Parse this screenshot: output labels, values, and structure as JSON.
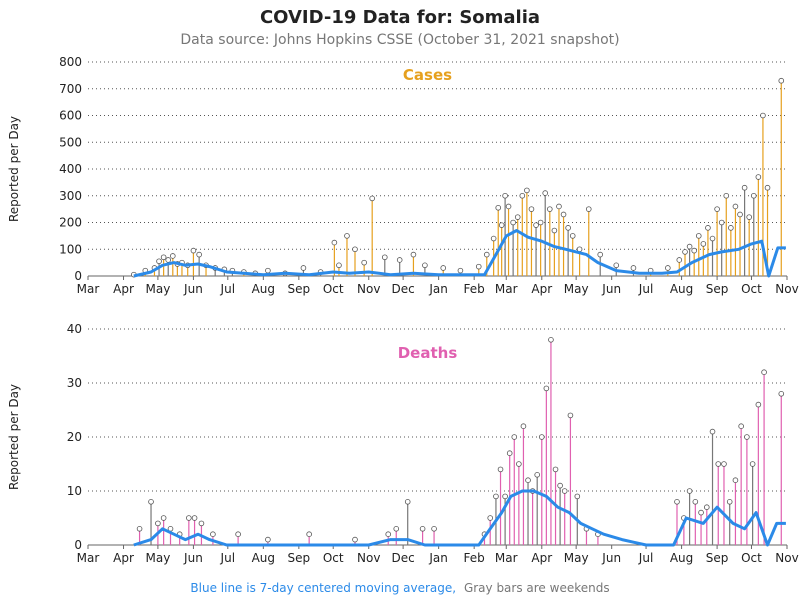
{
  "header": {
    "title": "COVID-19 Data for: Somalia",
    "subtitle": "Data source: Johns Hopkins CSSE (October 31, 2021 snapshot)"
  },
  "footer": {
    "blue_note": "Blue line is 7-day centered moving average,",
    "gray_note": "Gray bars are weekends"
  },
  "colors": {
    "cases": "#e6a01e",
    "deaths": "#e060b0",
    "moving_average": "#2b8ae8",
    "weekend": "#777777"
  },
  "chart_data": [
    {
      "type": "bar",
      "title": "Cases",
      "ylabel": "Reported per Day",
      "ylim": [
        0,
        800
      ],
      "yticks": [
        0,
        100,
        200,
        300,
        400,
        500,
        600,
        700,
        800
      ],
      "x_start": "2020-03-01",
      "x_end": "2021-11-01",
      "xtick_dates": [
        "2020-03-01",
        "2020-04-01",
        "2020-05-01",
        "2020-06-01",
        "2020-07-01",
        "2020-08-01",
        "2020-09-01",
        "2020-10-01",
        "2020-11-01",
        "2020-12-01",
        "2021-01-01",
        "2021-02-01",
        "2021-03-01",
        "2021-04-01",
        "2021-05-01",
        "2021-06-01",
        "2021-07-01",
        "2021-08-01",
        "2021-09-01",
        "2021-10-01",
        "2021-11-01"
      ],
      "xtick_labels": [
        "Mar",
        "Apr",
        "May",
        "Jun",
        "Jul",
        "Aug",
        "Sep",
        "Oct",
        "Nov",
        "Dec",
        "Jan",
        "Feb",
        "Mar",
        "Apr",
        "May",
        "Jun",
        "Jul",
        "Aug",
        "Sep",
        "Oct",
        "Nov"
      ],
      "grid": true,
      "series": [
        {
          "name": "Reported per Day",
          "style": "bars",
          "x": [
            "2020-04-10",
            "2020-04-20",
            "2020-04-28",
            "2020-05-02",
            "2020-05-06",
            "2020-05-10",
            "2020-05-14",
            "2020-05-18",
            "2020-05-22",
            "2020-05-27",
            "2020-06-01",
            "2020-06-06",
            "2020-06-12",
            "2020-06-20",
            "2020-06-28",
            "2020-07-05",
            "2020-07-15",
            "2020-07-25",
            "2020-08-05",
            "2020-08-20",
            "2020-09-05",
            "2020-09-20",
            "2020-10-02",
            "2020-10-06",
            "2020-10-13",
            "2020-10-20",
            "2020-10-28",
            "2020-11-04",
            "2020-11-15",
            "2020-11-28",
            "2020-12-10",
            "2020-12-20",
            "2021-01-05",
            "2021-01-20",
            "2021-02-05",
            "2021-02-12",
            "2021-02-18",
            "2021-02-22",
            "2021-02-25",
            "2021-02-28",
            "2021-03-03",
            "2021-03-07",
            "2021-03-11",
            "2021-03-15",
            "2021-03-19",
            "2021-03-23",
            "2021-03-27",
            "2021-03-31",
            "2021-04-04",
            "2021-04-08",
            "2021-04-12",
            "2021-04-16",
            "2021-04-20",
            "2021-04-24",
            "2021-04-28",
            "2021-05-04",
            "2021-05-12",
            "2021-05-22",
            "2021-06-05",
            "2021-06-20",
            "2021-07-05",
            "2021-07-20",
            "2021-07-30",
            "2021-08-04",
            "2021-08-08",
            "2021-08-12",
            "2021-08-16",
            "2021-08-20",
            "2021-08-24",
            "2021-08-28",
            "2021-09-01",
            "2021-09-05",
            "2021-09-09",
            "2021-09-13",
            "2021-09-17",
            "2021-09-21",
            "2021-09-25",
            "2021-09-29",
            "2021-10-03",
            "2021-10-07",
            "2021-10-11",
            "2021-10-15",
            "2021-10-27"
          ],
          "y": [
            5,
            20,
            30,
            55,
            70,
            60,
            75,
            45,
            50,
            40,
            95,
            80,
            40,
            30,
            25,
            20,
            15,
            10,
            20,
            10,
            30,
            15,
            125,
            40,
            150,
            100,
            50,
            290,
            70,
            60,
            80,
            40,
            30,
            20,
            35,
            80,
            140,
            255,
            190,
            300,
            260,
            200,
            220,
            300,
            320,
            250,
            190,
            200,
            310,
            250,
            170,
            260,
            230,
            180,
            150,
            100,
            250,
            80,
            40,
            30,
            20,
            30,
            60,
            90,
            110,
            95,
            150,
            120,
            180,
            140,
            250,
            200,
            300,
            180,
            260,
            230,
            330,
            220,
            300,
            370,
            600,
            330,
            730
          ]
        },
        {
          "name": "7-day moving average",
          "style": "line",
          "x": [
            "2020-04-10",
            "2020-04-25",
            "2020-05-05",
            "2020-05-15",
            "2020-05-25",
            "2020-06-05",
            "2020-06-15",
            "2020-06-30",
            "2020-07-15",
            "2020-08-01",
            "2020-08-20",
            "2020-09-10",
            "2020-10-01",
            "2020-10-15",
            "2020-11-01",
            "2020-11-20",
            "2020-12-10",
            "2021-01-01",
            "2021-01-25",
            "2021-02-10",
            "2021-02-20",
            "2021-03-01",
            "2021-03-10",
            "2021-03-20",
            "2021-04-01",
            "2021-04-12",
            "2021-04-22",
            "2021-05-01",
            "2021-05-10",
            "2021-05-20",
            "2021-06-05",
            "2021-06-25",
            "2021-07-15",
            "2021-07-28",
            "2021-08-10",
            "2021-08-25",
            "2021-09-05",
            "2021-09-20",
            "2021-10-01",
            "2021-10-10",
            "2021-10-16",
            "2021-10-24",
            "2021-10-31"
          ],
          "y": [
            0,
            15,
            40,
            50,
            40,
            45,
            35,
            15,
            10,
            5,
            10,
            5,
            15,
            10,
            15,
            5,
            10,
            5,
            5,
            5,
            80,
            150,
            170,
            145,
            130,
            110,
            100,
            90,
            80,
            50,
            20,
            10,
            10,
            15,
            50,
            80,
            90,
            100,
            120,
            130,
            0,
            105,
            105
          ]
        }
      ]
    },
    {
      "type": "bar",
      "title": "Deaths",
      "ylabel": "Reported per Day",
      "ylim": [
        0,
        40
      ],
      "yticks": [
        0,
        10,
        20,
        30,
        40
      ],
      "x_start": "2020-03-01",
      "x_end": "2021-11-01",
      "xtick_dates": [
        "2020-03-01",
        "2020-04-01",
        "2020-05-01",
        "2020-06-01",
        "2020-07-01",
        "2020-08-01",
        "2020-09-01",
        "2020-10-01",
        "2020-11-01",
        "2020-12-01",
        "2021-01-01",
        "2021-02-01",
        "2021-03-01",
        "2021-04-01",
        "2021-05-01",
        "2021-06-01",
        "2021-07-01",
        "2021-08-01",
        "2021-09-01",
        "2021-10-01",
        "2021-11-01"
      ],
      "xtick_labels": [
        "Mar",
        "Apr",
        "May",
        "Jun",
        "Jul",
        "Aug",
        "Sep",
        "Oct",
        "Nov",
        "Dec",
        "Jan",
        "Feb",
        "Mar",
        "Apr",
        "May",
        "Jun",
        "Jul",
        "Aug",
        "Sep",
        "Oct",
        "Nov"
      ],
      "grid": true,
      "series": [
        {
          "name": "Reported per Day",
          "style": "bars",
          "x": [
            "2020-04-15",
            "2020-04-25",
            "2020-05-01",
            "2020-05-06",
            "2020-05-12",
            "2020-05-20",
            "2020-05-28",
            "2020-06-02",
            "2020-06-08",
            "2020-06-18",
            "2020-07-10",
            "2020-08-05",
            "2020-09-10",
            "2020-10-20",
            "2020-11-18",
            "2020-11-25",
            "2020-12-05",
            "2020-12-18",
            "2020-12-28",
            "2021-02-10",
            "2021-02-15",
            "2021-02-20",
            "2021-02-24",
            "2021-02-28",
            "2021-03-04",
            "2021-03-08",
            "2021-03-12",
            "2021-03-16",
            "2021-03-20",
            "2021-03-24",
            "2021-03-28",
            "2021-04-01",
            "2021-04-05",
            "2021-04-09",
            "2021-04-13",
            "2021-04-17",
            "2021-04-21",
            "2021-04-26",
            "2021-05-02",
            "2021-05-10",
            "2021-05-20",
            "2021-07-28",
            "2021-08-03",
            "2021-08-08",
            "2021-08-13",
            "2021-08-18",
            "2021-08-23",
            "2021-08-28",
            "2021-09-02",
            "2021-09-07",
            "2021-09-12",
            "2021-09-17",
            "2021-09-22",
            "2021-09-27",
            "2021-10-02",
            "2021-10-07",
            "2021-10-12",
            "2021-10-27"
          ],
          "y": [
            3,
            8,
            4,
            5,
            3,
            2,
            5,
            5,
            4,
            2,
            2,
            1,
            2,
            1,
            2,
            3,
            8,
            3,
            3,
            2,
            5,
            9,
            14,
            9,
            17,
            20,
            15,
            22,
            12,
            10,
            13,
            20,
            29,
            38,
            14,
            11,
            10,
            24,
            9,
            3,
            2,
            8,
            5,
            10,
            8,
            6,
            7,
            21,
            15,
            15,
            8,
            12,
            22,
            20,
            15,
            26,
            32,
            28
          ]
        },
        {
          "name": "7-day moving average",
          "style": "line",
          "x": [
            "2020-04-10",
            "2020-04-25",
            "2020-05-05",
            "2020-05-15",
            "2020-05-25",
            "2020-06-05",
            "2020-06-15",
            "2020-06-30",
            "2020-07-15",
            "2020-08-01",
            "2020-09-01",
            "2020-10-01",
            "2020-11-01",
            "2020-11-20",
            "2020-12-05",
            "2020-12-20",
            "2021-01-15",
            "2021-02-05",
            "2021-02-15",
            "2021-02-25",
            "2021-03-05",
            "2021-03-15",
            "2021-03-25",
            "2021-04-05",
            "2021-04-15",
            "2021-04-25",
            "2021-05-05",
            "2021-05-15",
            "2021-05-25",
            "2021-06-10",
            "2021-07-01",
            "2021-07-25",
            "2021-08-05",
            "2021-08-20",
            "2021-09-01",
            "2021-09-15",
            "2021-09-25",
            "2021-10-05",
            "2021-10-15",
            "2021-10-23",
            "2021-10-31"
          ],
          "y": [
            0,
            1,
            3,
            2,
            1,
            2,
            1,
            0,
            0,
            0,
            0,
            0,
            0,
            1,
            1,
            0,
            0,
            0,
            3,
            6,
            9,
            10,
            10,
            9,
            7,
            6,
            4,
            3,
            2,
            1,
            0,
            0,
            5,
            4,
            7,
            4,
            3,
            6,
            0,
            4,
            4
          ]
        }
      ]
    }
  ]
}
